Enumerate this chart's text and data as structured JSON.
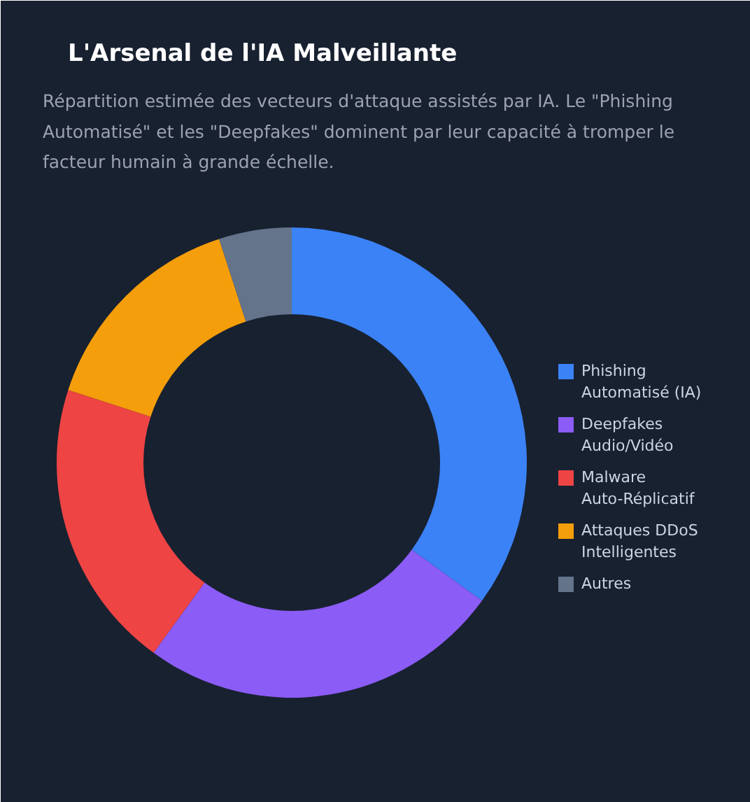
{
  "chart_data": {
    "type": "donut",
    "title": "L'Arsenal de l'IA Malveillante",
    "subtitle": "Répartition estimée des vecteurs d'attaque assistés par IA. Le \"Phishing Automatisé\" et les \"Deepfakes\" dominent par leur capacité à tromper le facteur humain à grande échelle.",
    "categories": [
      "Phishing Automatisé (IA)",
      "Deepfakes Audio/Vidéo",
      "Malware Auto-Réplicatif",
      "Attaques DDoS Intelligentes",
      "Autres"
    ],
    "values": [
      35,
      25,
      20,
      15,
      5
    ],
    "colors": [
      "#3b82f6",
      "#8b5cf6",
      "#ef4444",
      "#f59e0b",
      "#64748b"
    ],
    "legend": "right"
  }
}
